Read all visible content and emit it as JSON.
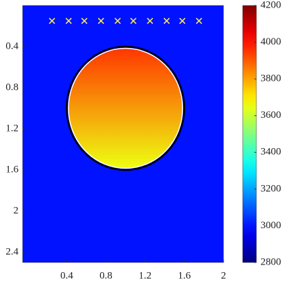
{
  "chart_data": {
    "type": "heatmap",
    "xlim": [
      -0.05,
      2.0
    ],
    "ylim": [
      2.5,
      0
    ],
    "xticks": [
      0.4,
      0.8,
      1.2,
      1.6,
      2
    ],
    "yticks": [
      0.4,
      0.8,
      1.2,
      1.6,
      2,
      2.4
    ],
    "colormap": "jet",
    "clim": [
      2800,
      4200
    ],
    "cticks": [
      2800,
      3000,
      3200,
      3400,
      3600,
      3800,
      4000,
      4200
    ],
    "field": {
      "background": 3000,
      "inclusion_top": 3950,
      "inclusion_bottom": 3650
    },
    "circle": {
      "cx": 1.0,
      "cy": 1.0,
      "r": 0.6
    },
    "markers": {
      "color": "#f2e25a",
      "x": [
        0.25,
        0.42,
        0.58,
        0.75,
        0.92,
        1.08,
        1.25,
        1.42,
        1.58,
        1.75
      ],
      "y": [
        0.15,
        0.15,
        0.15,
        0.15,
        0.15,
        0.15,
        0.15,
        0.15,
        0.15,
        0.15
      ]
    }
  }
}
